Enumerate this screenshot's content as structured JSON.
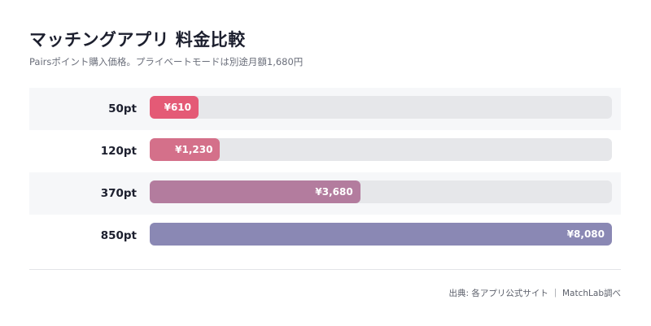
{
  "title": "マッチングアプリ 料金比較",
  "subtitle": "Pairsポイント購入価格。プライベートモードは別途月額1,680円",
  "source": "出典: 各アプリ公式サイト ｜ MatchLab調べ",
  "colors": [
    "#e45a76",
    "#d4708a",
    "#b37c9e",
    "#8a88b4"
  ],
  "chart_data": {
    "type": "bar",
    "orientation": "horizontal",
    "categories": [
      "50pt",
      "120pt",
      "370pt",
      "850pt"
    ],
    "values": [
      610,
      1230,
      3680,
      8080
    ],
    "value_labels": [
      "¥610",
      "¥1,230",
      "¥3,680",
      "¥8,080"
    ],
    "xlim": [
      0,
      8080
    ],
    "grid": false,
    "legend": "none"
  }
}
